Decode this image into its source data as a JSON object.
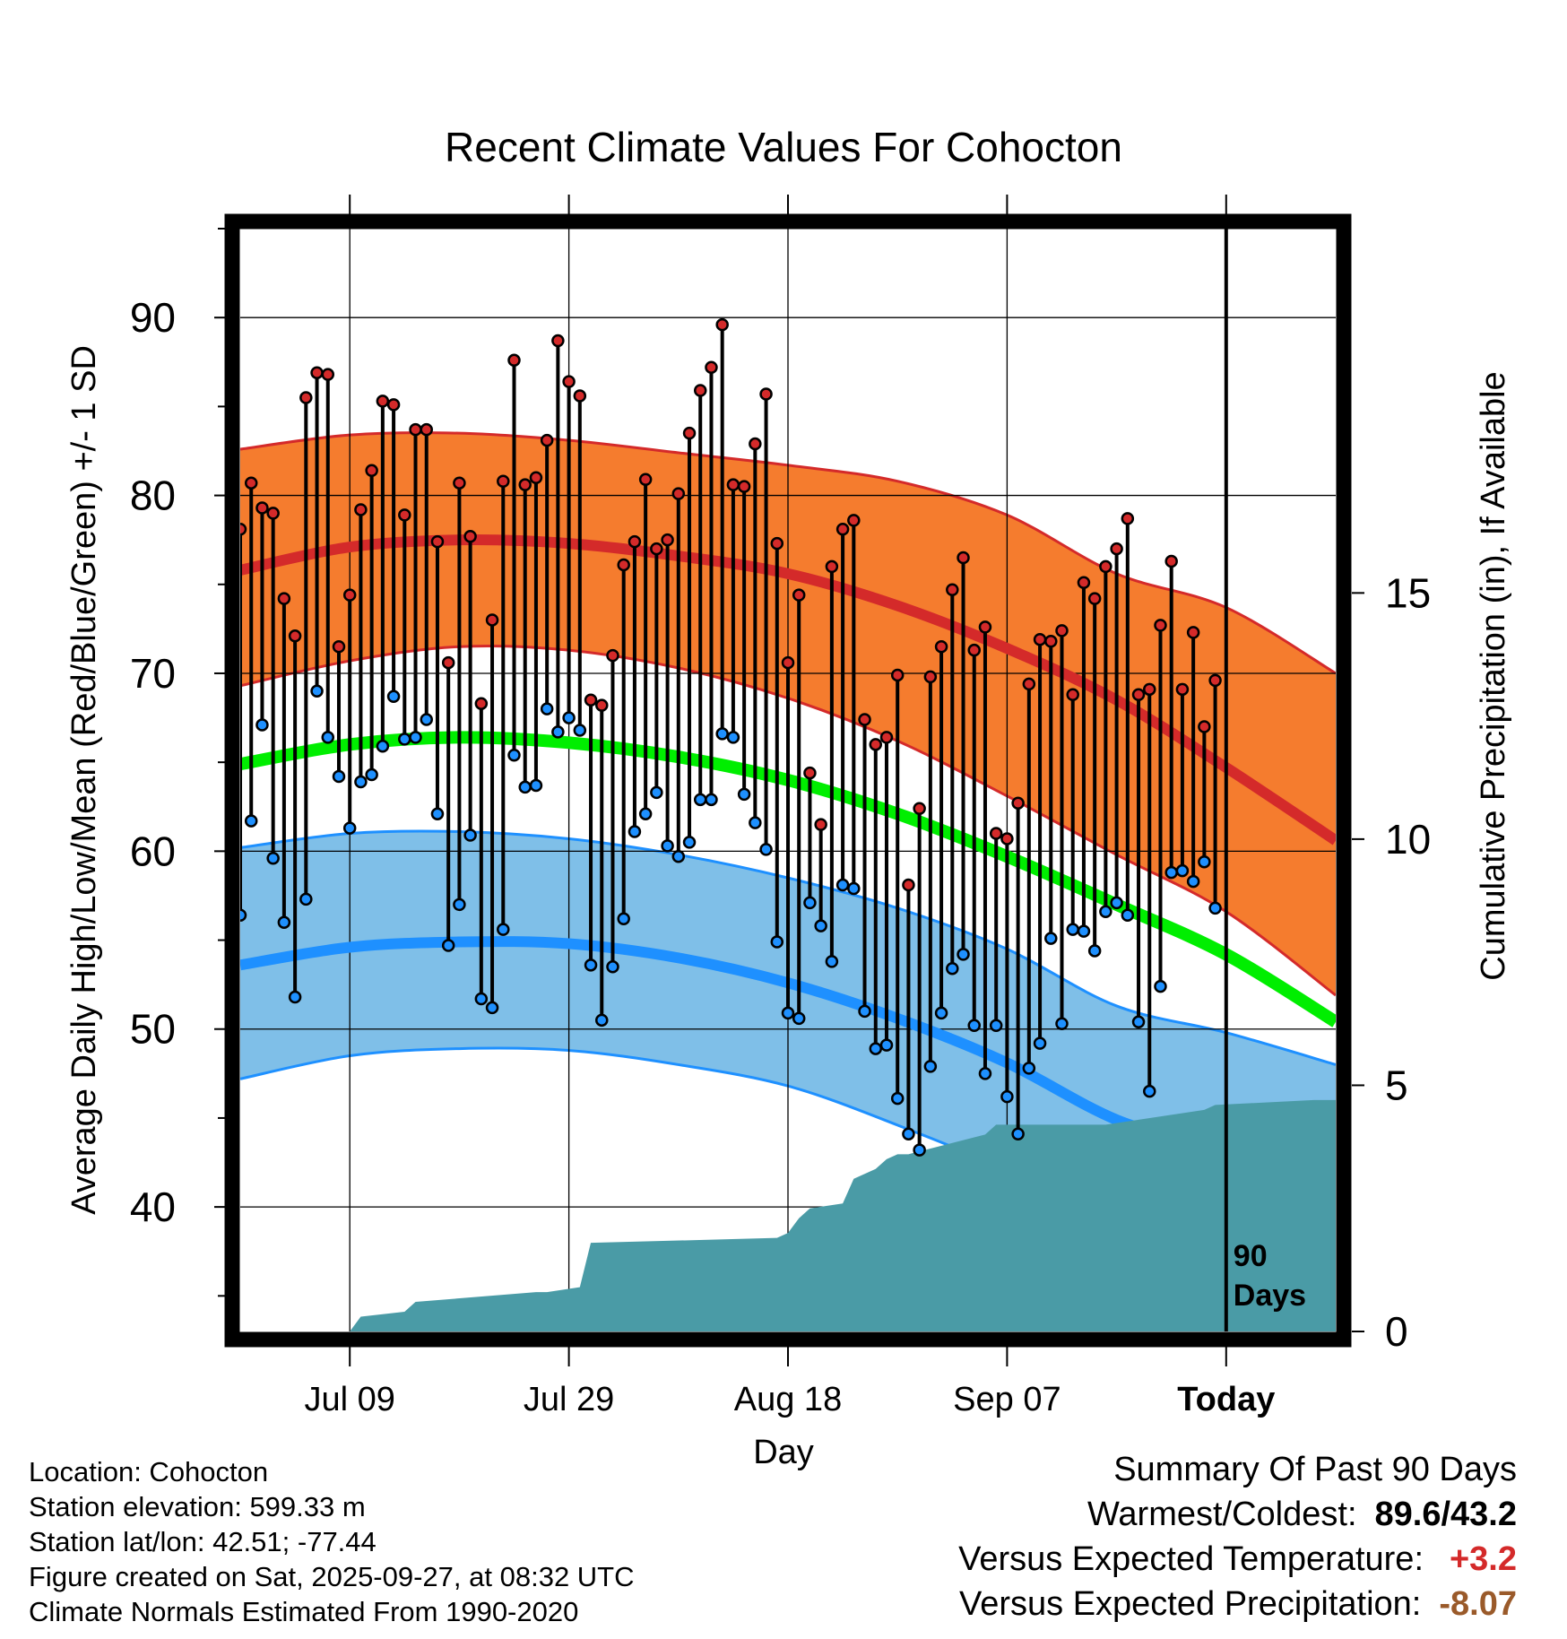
{
  "chart_data": {
    "type": "line",
    "title": "Recent Climate Values For Cohocton",
    "xlabel": "Day",
    "ylabel": "Average Daily High/Low/Mean (Red/Blue/Green) +/- 1 SD",
    "y2label": "Cumulative Precipitation (in), If Available",
    "xlim": [
      -10,
      90
    ],
    "ylim": [
      33,
      95
    ],
    "y2lim": [
      0,
      22.4
    ],
    "yticks": [
      40,
      50,
      60,
      70,
      80,
      90
    ],
    "y2ticks": [
      0,
      5,
      10,
      15
    ],
    "ytick_labels": [
      "40",
      "50",
      "60",
      "70",
      "80",
      "90"
    ],
    "y2tick_labels": [
      "0",
      "5",
      "10",
      "15"
    ],
    "xticks": [
      {
        "day": 0,
        "label": "Jul 09"
      },
      {
        "day": 20,
        "label": "Jul 29"
      },
      {
        "day": 40,
        "label": "Aug 18"
      },
      {
        "day": 60,
        "label": "Sep 07"
      },
      {
        "day": 80,
        "label": "Today"
      }
    ],
    "today_day": 80,
    "window_label": [
      "90",
      "Days"
    ],
    "normals": {
      "days": [
        -10,
        0,
        10,
        20,
        30,
        40,
        50,
        60,
        70,
        80,
        90
      ],
      "high_mean": [
        75.8,
        77.1,
        77.5,
        77.3,
        76.6,
        75.6,
        73.8,
        71.4,
        68.5,
        64.7,
        60.6
      ],
      "high_upper": [
        82.6,
        83.4,
        83.5,
        83.1,
        82.4,
        81.7,
        80.8,
        78.9,
        75.6,
        73.7,
        70.0
      ],
      "high_lower": [
        69.3,
        70.7,
        71.5,
        71.3,
        70.3,
        68.6,
        66.2,
        63.1,
        59.8,
        56.6,
        51.9
      ],
      "mean": [
        64.9,
        66.0,
        66.4,
        66.1,
        65.3,
        64.0,
        62.1,
        59.7,
        57.0,
        54.2,
        50.4
      ],
      "low_mean": [
        53.6,
        54.6,
        54.9,
        54.8,
        54.0,
        52.6,
        50.6,
        48.1,
        44.9,
        43.0,
        39.8
      ],
      "low_upper": [
        60.2,
        61.0,
        61.1,
        60.7,
        59.8,
        58.5,
        56.8,
        54.5,
        51.3,
        49.8,
        48.0
      ],
      "low_lower": [
        47.2,
        48.5,
        48.9,
        48.8,
        48.0,
        46.8,
        44.6,
        42.0,
        38.5,
        35.5,
        32.5
      ]
    },
    "days": [
      -10,
      -9,
      -8,
      -7,
      -6,
      -5,
      -4,
      -3,
      -2,
      -1,
      0,
      1,
      2,
      3,
      4,
      5,
      6,
      7,
      8,
      9,
      10,
      11,
      12,
      13,
      14,
      15,
      16,
      17,
      18,
      19,
      20,
      21,
      22,
      23,
      24,
      25,
      26,
      27,
      28,
      29,
      30,
      31,
      32,
      33,
      34,
      35,
      36,
      37,
      38,
      39,
      40,
      41,
      42,
      43,
      44,
      45,
      46,
      47,
      48,
      49,
      50,
      51,
      52,
      53,
      54,
      55,
      56,
      57,
      58,
      59,
      60,
      61,
      62,
      63,
      64,
      65,
      66,
      67,
      68,
      69,
      70,
      71,
      72,
      73,
      74,
      75,
      76,
      77,
      78,
      79
    ],
    "highs": [
      78.1,
      80.7,
      79.3,
      79.0,
      74.2,
      72.1,
      85.5,
      86.9,
      86.8,
      71.5,
      74.4,
      79.2,
      81.4,
      85.3,
      85.1,
      78.9,
      83.7,
      83.7,
      77.4,
      70.6,
      80.7,
      77.7,
      68.3,
      73.0,
      80.8,
      87.6,
      80.6,
      81.0,
      83.1,
      88.7,
      86.4,
      85.6,
      68.5,
      68.2,
      71.0,
      76.1,
      77.4,
      80.9,
      77.0,
      77.5,
      80.1,
      83.5,
      85.9,
      87.2,
      89.6,
      80.6,
      80.5,
      82.9,
      85.7,
      77.3,
      70.6,
      74.4,
      64.4,
      61.5,
      76.0,
      78.1,
      78.6,
      67.4,
      66.0,
      66.4,
      69.9,
      58.1,
      62.4,
      69.8,
      71.5,
      74.7,
      76.5,
      71.3,
      72.6,
      61.0,
      60.7,
      62.7,
      69.4,
      71.9,
      71.8,
      72.4,
      68.8,
      75.1,
      74.2,
      76.0,
      77.0,
      78.7,
      68.8,
      69.1,
      72.7,
      76.3,
      69.1,
      72.3,
      67.0,
      69.6
    ],
    "lows": [
      56.4,
      61.7,
      67.1,
      59.6,
      56.0,
      51.8,
      57.3,
      69.0,
      66.4,
      64.2,
      61.3,
      63.9,
      64.3,
      65.9,
      68.7,
      66.3,
      66.4,
      67.4,
      62.1,
      54.7,
      57.0,
      60.9,
      51.7,
      51.2,
      55.6,
      65.4,
      63.6,
      63.7,
      68.0,
      66.7,
      67.5,
      66.8,
      53.6,
      50.5,
      53.5,
      56.2,
      61.1,
      62.1,
      63.3,
      60.3,
      59.7,
      60.5,
      62.9,
      62.9,
      66.6,
      66.4,
      63.2,
      61.6,
      60.1,
      54.9,
      50.9,
      50.6,
      57.1,
      55.8,
      53.8,
      58.1,
      57.9,
      51.0,
      48.9,
      49.1,
      46.1,
      44.1,
      43.2,
      47.9,
      50.9,
      53.4,
      54.2,
      50.2,
      47.5,
      50.2,
      46.2,
      44.1,
      47.8,
      49.2,
      55.1,
      50.3,
      55.6,
      55.5,
      54.4,
      56.6,
      57.1,
      56.4,
      50.4,
      46.5,
      52.4,
      58.8,
      58.9,
      58.3,
      59.4,
      56.8
    ],
    "precip_cumulative": {
      "days": [
        -10,
        0,
        1,
        5,
        6,
        17,
        18,
        21,
        22,
        39,
        40,
        41,
        42,
        45,
        46,
        48,
        49,
        50,
        51,
        58,
        59,
        68,
        69,
        78,
        79,
        88,
        90
      ],
      "values": [
        0,
        0,
        0.3,
        0.4,
        0.6,
        0.8,
        0.8,
        0.9,
        1.8,
        1.9,
        2.0,
        2.3,
        2.5,
        2.6,
        3.1,
        3.3,
        3.5,
        3.6,
        3.6,
        4.0,
        4.2,
        4.2,
        4.2,
        4.5,
        4.6,
        4.7,
        4.7
      ]
    }
  },
  "info": {
    "location": "Location: Cohocton",
    "elevation": "Station elevation: 599.33 m",
    "latlon": "Station lat/lon: 42.51; -77.44",
    "created": "Figure created on Sat, 2025-09-27, at 08:32 UTC",
    "normals": "Climate Normals Estimated From 1990-2020"
  },
  "summary": {
    "title": "Summary Of Past 90 Days",
    "extremes_label": "Warmest/Coldest:",
    "extremes_value": "89.6/43.2",
    "temp_label": "Versus Expected Temperature:",
    "temp_value": "+3.2",
    "precip_label": "Versus Expected Precipitation:",
    "precip_value": "-8.07"
  },
  "colors": {
    "high_band": "#f57c2e",
    "high_line": "#d42a2a",
    "low_band": "#7fbfe8",
    "low_line": "#1e90ff",
    "mean_line": "#00ee00",
    "precip": "#4a9ba6",
    "high_dot": "#d42a2a",
    "low_dot": "#1e90ff"
  }
}
